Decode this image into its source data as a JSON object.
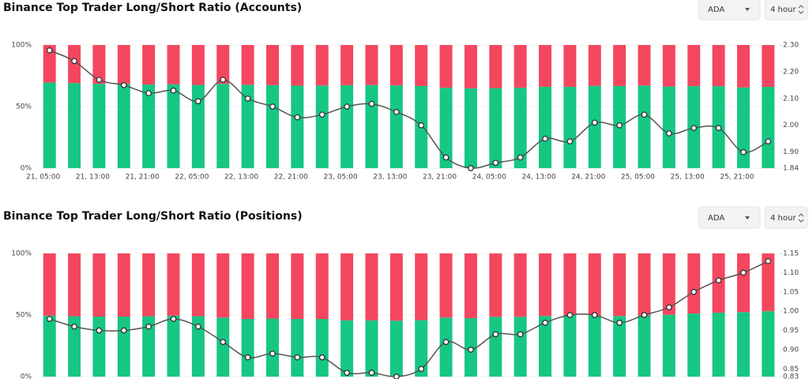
{
  "chart_data": [
    {
      "type": "bar",
      "stacked": true,
      "title": "Binance Top Trader Long/Short Ratio (Accounts)",
      "selector": "ADA",
      "interval": "4 hour",
      "categories": [
        "21, 05:00",
        null,
        "21, 13:00",
        null,
        "21, 21:00",
        null,
        "22, 05:00",
        null,
        "22, 13:00",
        null,
        "22, 21:00",
        null,
        "23, 05:00",
        null,
        "23, 13:00",
        null,
        "23, 21:00",
        null,
        "24, 05:00",
        null,
        "24, 13:00",
        null,
        "24, 21:00",
        null,
        "25, 05:00",
        null,
        "25, 13:00",
        null,
        "25, 21:00",
        null
      ],
      "series": [
        {
          "color": "#16c784",
          "values": [
            69.5,
            69.1,
            68.5,
            68.3,
            67.9,
            68.1,
            67.6,
            68.5,
            67.7,
            67.4,
            67.0,
            67.1,
            67.4,
            67.5,
            67.2,
            66.7,
            65.3,
            64.8,
            65.0,
            65.3,
            66.1,
            66.0,
            66.8,
            66.7,
            67.1,
            66.3,
            66.6,
            66.6,
            65.5,
            66.0
          ]
        },
        {
          "color": "#f4475f",
          "values": [
            30.5,
            30.9,
            31.5,
            31.7,
            32.1,
            31.9,
            32.4,
            31.5,
            32.3,
            32.6,
            33.0,
            32.9,
            32.6,
            32.5,
            32.8,
            33.3,
            34.7,
            35.2,
            35.0,
            34.7,
            33.9,
            34.0,
            33.2,
            33.3,
            32.9,
            33.7,
            33.4,
            33.4,
            34.5,
            34.0
          ]
        },
        {
          "color": "#555555",
          "axis": "y2",
          "values": [
            2.28,
            2.24,
            2.17,
            2.15,
            2.12,
            2.13,
            2.09,
            2.17,
            2.1,
            2.07,
            2.03,
            2.04,
            2.07,
            2.08,
            2.05,
            2.0,
            1.88,
            1.84,
            1.86,
            1.88,
            1.95,
            1.94,
            2.01,
            2.0,
            2.04,
            1.97,
            1.99,
            1.99,
            1.9,
            1.94
          ]
        }
      ],
      "ylim": [
        0,
        100
      ],
      "yticks": [
        {
          "value": 0,
          "label": "0%"
        },
        {
          "value": 50,
          "label": "50%"
        },
        {
          "value": 100,
          "label": "100%"
        }
      ],
      "y2lim": [
        1.84,
        2.3
      ],
      "y2ticks": [
        1.84,
        {
          "value": 1.9,
          "label": "1.90"
        },
        {
          "value": 2,
          "label": "2.00"
        },
        {
          "value": 2.1,
          "label": "2.10"
        },
        {
          "value": 2.2,
          "label": "2.20"
        },
        {
          "value": 2.3,
          "label": "2.30"
        }
      ],
      "grid": true
    },
    {
      "type": "bar",
      "stacked": true,
      "title": "Binance Top Trader Long/Short Ratio (Positions)",
      "selector": "ADA",
      "interval": "4 hour",
      "series": [
        {
          "color": "#16c784",
          "values": [
            49.5,
            49.0,
            48.7,
            48.7,
            49.0,
            49.5,
            49.0,
            47.9,
            46.8,
            47.1,
            46.8,
            46.8,
            45.7,
            45.7,
            45.4,
            45.9,
            47.9,
            47.4,
            48.5,
            48.5,
            49.2,
            49.7,
            49.7,
            49.2,
            49.7,
            50.2,
            51.2,
            51.9,
            52.4,
            53.1
          ]
        },
        {
          "color": "#f4475f",
          "values": [
            50.5,
            51.0,
            51.3,
            51.3,
            51.0,
            50.5,
            51.0,
            52.1,
            53.2,
            52.9,
            53.2,
            53.2,
            54.3,
            54.3,
            54.6,
            54.1,
            52.1,
            52.6,
            51.5,
            51.5,
            50.8,
            50.3,
            50.3,
            50.8,
            50.3,
            49.8,
            48.8,
            48.1,
            47.6,
            46.9
          ]
        },
        {
          "color": "#555555",
          "axis": "y2",
          "values": [
            0.98,
            0.96,
            0.95,
            0.95,
            0.96,
            0.98,
            0.96,
            0.92,
            0.88,
            0.89,
            0.88,
            0.88,
            0.84,
            0.84,
            0.83,
            0.85,
            0.92,
            0.9,
            0.94,
            0.94,
            0.97,
            0.99,
            0.99,
            0.97,
            0.99,
            1.01,
            1.05,
            1.08,
            1.1,
            1.13
          ]
        }
      ],
      "ylim": [
        0,
        100
      ],
      "yticks": [
        {
          "value": 0,
          "label": "0%"
        },
        {
          "value": 50,
          "label": "50%"
        },
        {
          "value": 100,
          "label": "100%"
        }
      ],
      "y2lim": [
        0.83,
        1.15
      ],
      "y2ticks": [
        0.83,
        0.85,
        {
          "value": 0.9,
          "label": "0.90"
        },
        0.95,
        {
          "value": 1,
          "label": "1.00"
        },
        1.05,
        {
          "value": 1.1,
          "label": "1.10"
        },
        1.15
      ],
      "grid": true
    }
  ]
}
